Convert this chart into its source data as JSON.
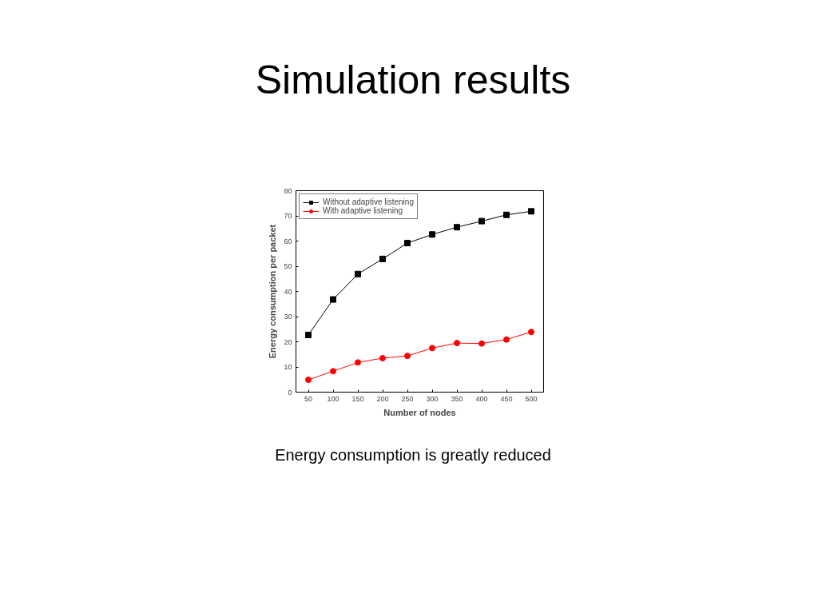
{
  "chart_data": {
    "type": "line",
    "title": "Simulation results",
    "xlabel": "Number of nodes",
    "ylabel": "Energy consumption per packet",
    "x": [
      50,
      100,
      150,
      200,
      250,
      300,
      350,
      400,
      450,
      500
    ],
    "series": [
      {
        "name": "Without adaptive listening",
        "color": "#000000",
        "marker": "square",
        "values": [
          22.7,
          36.8,
          46.9,
          52.9,
          59.2,
          62.6,
          65.5,
          67.9,
          70.4,
          71.8
        ]
      },
      {
        "name": "With adaptive listening",
        "color": "#ff0000",
        "marker": "circle",
        "values": [
          4.9,
          8.3,
          11.8,
          13.5,
          14.4,
          17.5,
          19.5,
          19.3,
          20.9,
          23.9
        ]
      }
    ],
    "xlim": [
      25,
      525
    ],
    "xticks": [
      50,
      100,
      150,
      200,
      250,
      300,
      350,
      400,
      450,
      500
    ],
    "ylim": [
      0,
      80
    ],
    "yticks": [
      0,
      10,
      20,
      30,
      40,
      50,
      60,
      70,
      80
    ],
    "grid": false,
    "legend": "top left",
    "line_style": "solid",
    "annotations": [
      "Energy consumption is greatly reduced"
    ]
  }
}
